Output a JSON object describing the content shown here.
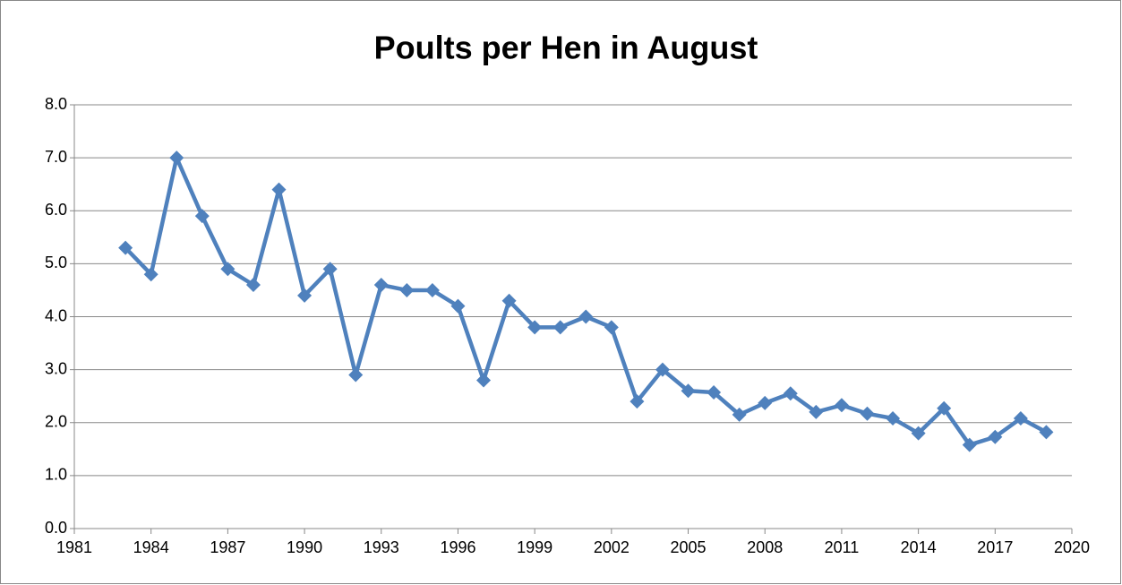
{
  "chart_data": {
    "type": "line",
    "title": "Poults per Hen in August",
    "x": [
      1983,
      1984,
      1985,
      1986,
      1987,
      1988,
      1989,
      1990,
      1991,
      1992,
      1993,
      1994,
      1995,
      1996,
      1997,
      1998,
      1999,
      2000,
      2001,
      2002,
      2003,
      2004,
      2005,
      2006,
      2007,
      2008,
      2009,
      2010,
      2011,
      2012,
      2013,
      2014,
      2015,
      2016,
      2017,
      2018,
      2019
    ],
    "series": [
      {
        "color": "#4f81bd",
        "values": [
          5.3,
          4.8,
          7.0,
          5.9,
          4.9,
          4.6,
          6.4,
          4.4,
          4.9,
          2.9,
          4.6,
          4.5,
          4.5,
          4.2,
          2.8,
          4.3,
          3.8,
          3.8,
          4.0,
          3.8,
          2.4,
          3.0,
          2.6,
          2.57,
          2.15,
          2.37,
          2.55,
          2.2,
          2.33,
          2.17,
          2.08,
          1.8,
          2.27,
          1.58,
          1.73,
          2.08,
          1.82
        ]
      }
    ],
    "xlim": [
      1981,
      2020
    ],
    "xticks": [
      1981,
      1984,
      1987,
      1990,
      1993,
      1996,
      1999,
      2002,
      2005,
      2008,
      2011,
      2014,
      2017,
      2020
    ],
    "ylim": [
      0,
      8
    ],
    "yticks": [
      {
        "value": 0,
        "label": "0.0"
      },
      {
        "value": 1,
        "label": "1.0"
      },
      {
        "value": 2,
        "label": "2.0"
      },
      {
        "value": 3,
        "label": "3.0"
      },
      {
        "value": 4,
        "label": "4.0"
      },
      {
        "value": 5,
        "label": "5.0"
      },
      {
        "value": 6,
        "label": "6.0"
      },
      {
        "value": 7,
        "label": "7.0"
      },
      {
        "value": 8,
        "label": "8.0"
      }
    ],
    "grid": true
  }
}
